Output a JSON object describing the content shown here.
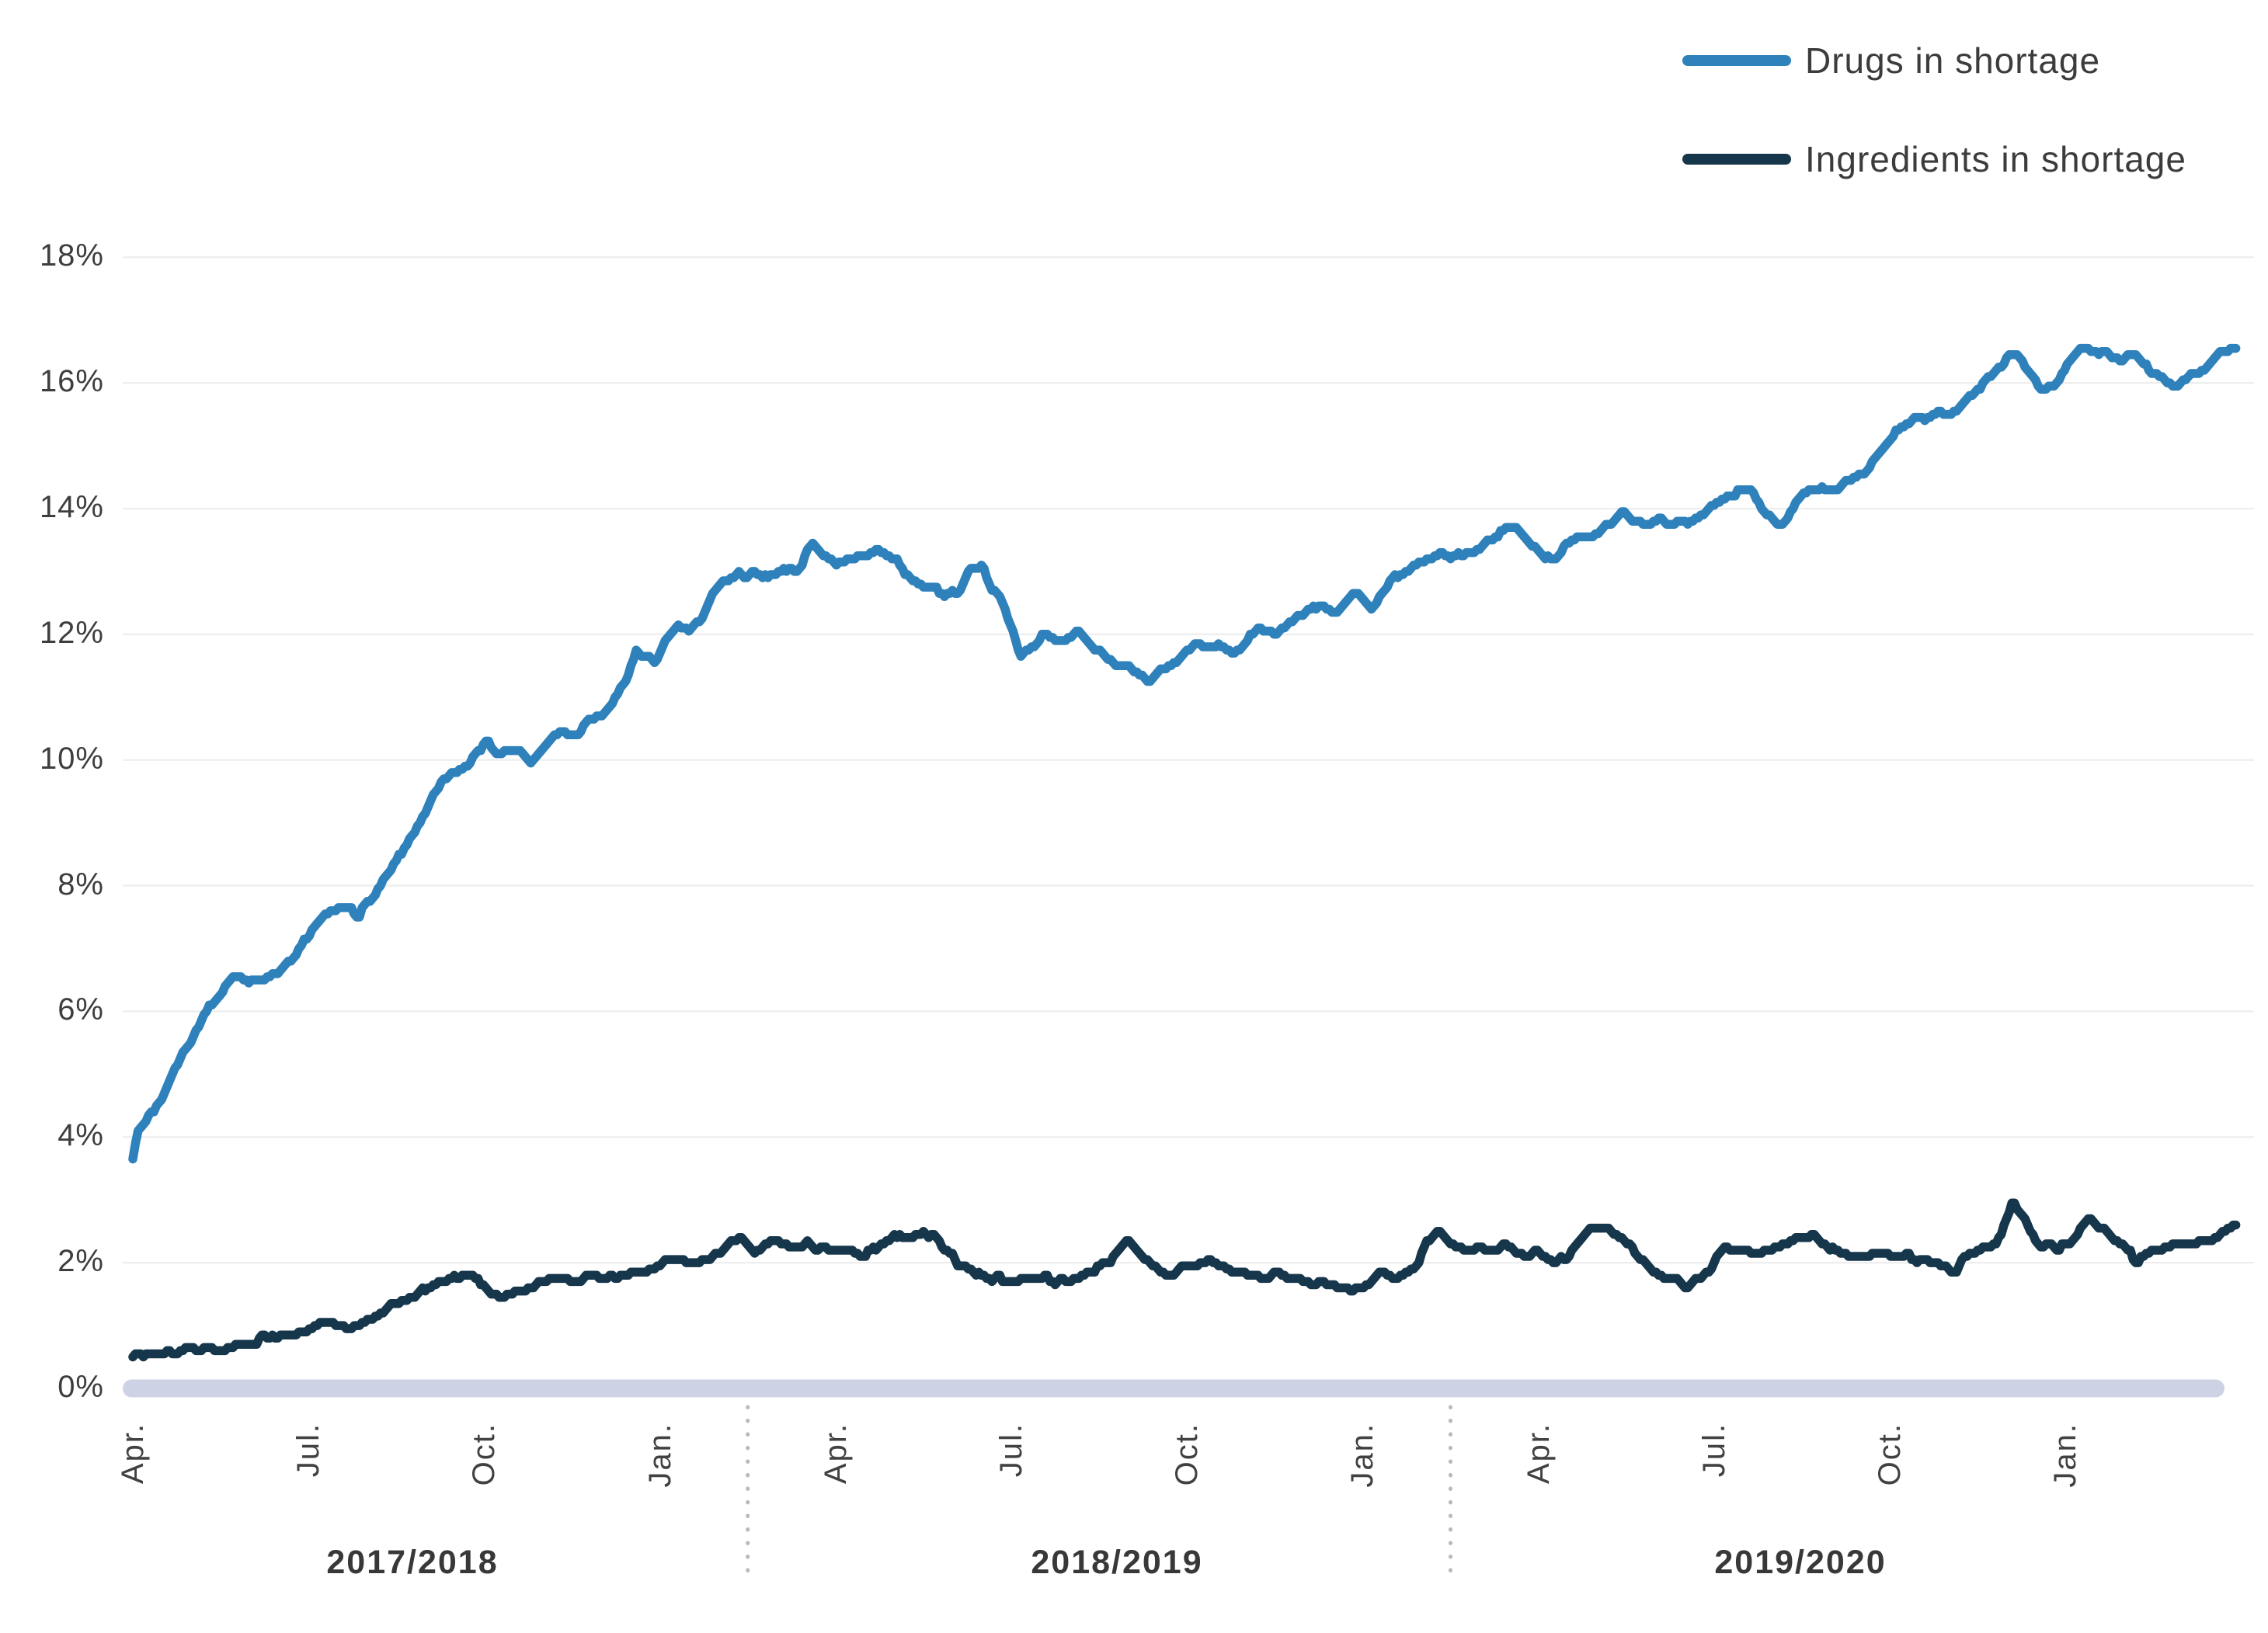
{
  "legend": {
    "items": [
      {
        "label": "Drugs in shortage",
        "color": "#2e81ba"
      },
      {
        "label": "Ingredients in shortage",
        "color": "#15364b"
      }
    ]
  },
  "chart_data": {
    "type": "line",
    "title": "",
    "xlabel": "",
    "ylabel": "",
    "x_unit": "months since April 2017",
    "x_range": [
      0,
      36
    ],
    "ylim": [
      0,
      18
    ],
    "y_ticks": [
      0,
      2,
      4,
      6,
      8,
      10,
      12,
      14,
      16,
      18
    ],
    "y_tick_suffix": "%",
    "grid": "horizontal",
    "legend_position": "top-right",
    "x_month_tick_labels": [
      "Apr.",
      "Jul.",
      "Oct.",
      "Jan."
    ],
    "x_month_tick_offsets": [
      0,
      3,
      6,
      9
    ],
    "fiscal_year_labels": [
      "2017/2018",
      "2018/2019",
      "2019/2020"
    ],
    "colors": {
      "grid": "#ececec",
      "baseline_bar": "#cdd3e5",
      "separator_dots": "#b9b9b9",
      "tick_text": "#414141"
    },
    "series": [
      {
        "name": "Drugs in shortage",
        "color": "#2e81ba",
        "points": [
          [
            0,
            3.7
          ],
          [
            0.08,
            4.15
          ],
          [
            0.2,
            4.3
          ],
          [
            0.35,
            4.35
          ],
          [
            0.5,
            4.6
          ],
          [
            0.65,
            4.95
          ],
          [
            0.8,
            5.25
          ],
          [
            1.0,
            5.55
          ],
          [
            1.2,
            5.9
          ],
          [
            1.4,
            6.2
          ],
          [
            1.6,
            6.45
          ],
          [
            1.8,
            6.55
          ],
          [
            2.0,
            6.5
          ],
          [
            2.3,
            6.55
          ],
          [
            2.6,
            6.7
          ],
          [
            2.9,
            7.05
          ],
          [
            3.1,
            7.4
          ],
          [
            3.3,
            7.6
          ],
          [
            3.6,
            7.65
          ],
          [
            3.85,
            7.55
          ],
          [
            4.1,
            7.8
          ],
          [
            4.3,
            8.1
          ],
          [
            4.5,
            8.35
          ],
          [
            4.7,
            8.65
          ],
          [
            4.9,
            8.95
          ],
          [
            5.1,
            9.45
          ],
          [
            5.3,
            9.7
          ],
          [
            5.6,
            9.9
          ],
          [
            5.9,
            10.1
          ],
          [
            6.05,
            10.35
          ],
          [
            6.2,
            10.1
          ],
          [
            6.45,
            10.1
          ],
          [
            6.6,
            10.15
          ],
          [
            6.8,
            9.95
          ],
          [
            7.0,
            10.2
          ],
          [
            7.2,
            10.45
          ],
          [
            7.45,
            10.4
          ],
          [
            7.6,
            10.45
          ],
          [
            7.8,
            10.65
          ],
          [
            8.0,
            10.75
          ],
          [
            8.2,
            10.9
          ],
          [
            8.4,
            11.2
          ],
          [
            8.6,
            11.7
          ],
          [
            8.75,
            11.6
          ],
          [
            8.9,
            11.55
          ],
          [
            9.1,
            11.9
          ],
          [
            9.3,
            12.1
          ],
          [
            9.5,
            12.0
          ],
          [
            9.7,
            12.2
          ],
          [
            9.9,
            12.6
          ],
          [
            10.1,
            12.8
          ],
          [
            10.35,
            12.95
          ],
          [
            10.6,
            13.0
          ],
          [
            10.85,
            12.9
          ],
          [
            11.1,
            13.0
          ],
          [
            11.35,
            12.95
          ],
          [
            11.6,
            13.45
          ],
          [
            11.8,
            13.25
          ],
          [
            12.0,
            13.1
          ],
          [
            12.2,
            13.2
          ],
          [
            12.45,
            13.3
          ],
          [
            12.65,
            13.35
          ],
          [
            12.9,
            13.2
          ],
          [
            13.1,
            13.15
          ],
          [
            13.3,
            12.85
          ],
          [
            13.5,
            12.75
          ],
          [
            13.7,
            12.7
          ],
          [
            13.9,
            12.6
          ],
          [
            14.1,
            12.65
          ],
          [
            14.3,
            13.0
          ],
          [
            14.5,
            13.05
          ],
          [
            14.7,
            12.7
          ],
          [
            14.85,
            12.5
          ],
          [
            15.0,
            12.1
          ],
          [
            15.15,
            11.7
          ],
          [
            15.35,
            11.8
          ],
          [
            15.55,
            12.0
          ],
          [
            15.75,
            11.85
          ],
          [
            15.95,
            11.9
          ],
          [
            16.15,
            12.0
          ],
          [
            16.35,
            11.8
          ],
          [
            16.55,
            11.65
          ],
          [
            16.75,
            11.55
          ],
          [
            16.95,
            11.5
          ],
          [
            17.15,
            11.35
          ],
          [
            17.35,
            11.25
          ],
          [
            17.55,
            11.45
          ],
          [
            17.75,
            11.5
          ],
          [
            17.95,
            11.75
          ],
          [
            18.15,
            11.85
          ],
          [
            18.35,
            11.8
          ],
          [
            18.55,
            11.9
          ],
          [
            18.75,
            11.75
          ],
          [
            18.95,
            11.85
          ],
          [
            19.15,
            12.0
          ],
          [
            19.35,
            12.1
          ],
          [
            19.55,
            12.05
          ],
          [
            19.75,
            12.2
          ],
          [
            19.95,
            12.3
          ],
          [
            20.15,
            12.45
          ],
          [
            20.35,
            12.4
          ],
          [
            20.55,
            12.3
          ],
          [
            20.75,
            12.55
          ],
          [
            20.95,
            12.65
          ],
          [
            21.15,
            12.4
          ],
          [
            21.35,
            12.7
          ],
          [
            21.55,
            12.9
          ],
          [
            21.75,
            13.05
          ],
          [
            21.95,
            13.1
          ],
          [
            22.15,
            13.15
          ],
          [
            22.35,
            13.3
          ],
          [
            22.55,
            13.2
          ],
          [
            22.75,
            13.3
          ],
          [
            22.95,
            13.35
          ],
          [
            23.2,
            13.5
          ],
          [
            23.45,
            13.65
          ],
          [
            23.65,
            13.7
          ],
          [
            23.85,
            13.45
          ],
          [
            24.05,
            13.3
          ],
          [
            24.25,
            13.15
          ],
          [
            24.45,
            13.35
          ],
          [
            24.65,
            13.5
          ],
          [
            24.85,
            13.55
          ],
          [
            25.05,
            13.6
          ],
          [
            25.25,
            13.75
          ],
          [
            25.45,
            13.95
          ],
          [
            25.65,
            13.8
          ],
          [
            25.85,
            13.75
          ],
          [
            26.05,
            13.8
          ],
          [
            26.25,
            13.75
          ],
          [
            26.45,
            13.85
          ],
          [
            26.65,
            13.8
          ],
          [
            26.85,
            13.9
          ],
          [
            27.05,
            14.1
          ],
          [
            27.25,
            14.25
          ],
          [
            27.45,
            14.3
          ],
          [
            27.65,
            14.25
          ],
          [
            27.85,
            13.9
          ],
          [
            28.05,
            13.75
          ],
          [
            28.25,
            13.8
          ],
          [
            28.45,
            14.2
          ],
          [
            28.65,
            14.3
          ],
          [
            28.85,
            14.3
          ],
          [
            29.05,
            14.25
          ],
          [
            29.25,
            14.4
          ],
          [
            29.45,
            14.5
          ],
          [
            29.65,
            14.65
          ],
          [
            29.85,
            14.9
          ],
          [
            30.05,
            15.2
          ],
          [
            30.25,
            15.3
          ],
          [
            30.45,
            15.45
          ],
          [
            30.65,
            15.4
          ],
          [
            30.85,
            15.5
          ],
          [
            31.05,
            15.55
          ],
          [
            31.25,
            15.7
          ],
          [
            31.45,
            15.85
          ],
          [
            31.65,
            16.0
          ],
          [
            31.85,
            16.2
          ],
          [
            32.05,
            16.4
          ],
          [
            32.2,
            16.45
          ],
          [
            32.4,
            16.1
          ],
          [
            32.6,
            15.85
          ],
          [
            32.8,
            15.95
          ],
          [
            33.0,
            16.2
          ],
          [
            33.2,
            16.45
          ],
          [
            33.4,
            16.6
          ],
          [
            33.6,
            16.5
          ],
          [
            33.8,
            16.45
          ],
          [
            34.0,
            16.4
          ],
          [
            34.2,
            16.45
          ],
          [
            34.4,
            16.25
          ],
          [
            34.6,
            16.1
          ],
          [
            34.8,
            15.95
          ],
          [
            35.0,
            16.05
          ],
          [
            35.2,
            16.1
          ],
          [
            35.4,
            16.3
          ],
          [
            35.6,
            16.45
          ],
          [
            35.8,
            16.5
          ],
          [
            35.95,
            16.55
          ]
        ]
      },
      {
        "name": "Ingredients in shortage",
        "color": "#15364b",
        "points": [
          [
            0,
            0.5
          ],
          [
            0.3,
            0.55
          ],
          [
            0.6,
            0.6
          ],
          [
            0.9,
            0.6
          ],
          [
            1.2,
            0.6
          ],
          [
            1.5,
            0.65
          ],
          [
            1.8,
            0.7
          ],
          [
            2.1,
            0.75
          ],
          [
            2.4,
            0.85
          ],
          [
            2.7,
            0.9
          ],
          [
            3.0,
            0.95
          ],
          [
            3.3,
            1.0
          ],
          [
            3.6,
            0.95
          ],
          [
            3.9,
            1.05
          ],
          [
            4.2,
            1.2
          ],
          [
            4.5,
            1.4
          ],
          [
            4.8,
            1.5
          ],
          [
            5.1,
            1.6
          ],
          [
            5.4,
            1.7
          ],
          [
            5.7,
            1.8
          ],
          [
            6.0,
            1.65
          ],
          [
            6.3,
            1.45
          ],
          [
            6.6,
            1.55
          ],
          [
            6.9,
            1.7
          ],
          [
            7.2,
            1.75
          ],
          [
            7.5,
            1.65
          ],
          [
            7.8,
            1.8
          ],
          [
            8.1,
            1.75
          ],
          [
            8.4,
            1.85
          ],
          [
            8.7,
            1.8
          ],
          [
            9.0,
            1.95
          ],
          [
            9.3,
            2.05
          ],
          [
            9.6,
            1.95
          ],
          [
            9.9,
            2.05
          ],
          [
            10.2,
            2.35
          ],
          [
            10.4,
            2.45
          ],
          [
            10.6,
            2.2
          ],
          [
            10.9,
            2.3
          ],
          [
            11.2,
            2.25
          ],
          [
            11.5,
            2.3
          ],
          [
            11.8,
            2.2
          ],
          [
            12.1,
            2.25
          ],
          [
            12.4,
            2.1
          ],
          [
            12.7,
            2.2
          ],
          [
            13.0,
            2.5
          ],
          [
            13.2,
            2.35
          ],
          [
            13.5,
            2.5
          ],
          [
            13.8,
            2.3
          ],
          [
            14.1,
            2.0
          ],
          [
            14.4,
            1.85
          ],
          [
            14.7,
            1.75
          ],
          [
            15.0,
            1.7
          ],
          [
            15.3,
            1.8
          ],
          [
            15.6,
            1.75
          ],
          [
            15.9,
            1.7
          ],
          [
            16.2,
            1.8
          ],
          [
            16.5,
            1.95
          ],
          [
            16.8,
            2.1
          ],
          [
            17.0,
            2.35
          ],
          [
            17.2,
            2.15
          ],
          [
            17.5,
            1.9
          ],
          [
            17.8,
            1.85
          ],
          [
            18.1,
            2.0
          ],
          [
            18.4,
            2.05
          ],
          [
            18.7,
            1.85
          ],
          [
            19.0,
            1.8
          ],
          [
            19.3,
            1.75
          ],
          [
            19.6,
            1.85
          ],
          [
            19.9,
            1.75
          ],
          [
            20.2,
            1.65
          ],
          [
            20.5,
            1.7
          ],
          [
            20.8,
            1.55
          ],
          [
            21.0,
            1.65
          ],
          [
            21.3,
            1.8
          ],
          [
            21.6,
            1.7
          ],
          [
            21.9,
            1.95
          ],
          [
            22.1,
            2.3
          ],
          [
            22.3,
            2.5
          ],
          [
            22.5,
            2.3
          ],
          [
            22.8,
            2.15
          ],
          [
            23.1,
            2.2
          ],
          [
            23.4,
            2.25
          ],
          [
            23.7,
            2.1
          ],
          [
            24.0,
            2.2
          ],
          [
            24.3,
            2.0
          ],
          [
            24.6,
            2.2
          ],
          [
            24.9,
            2.5
          ],
          [
            25.1,
            2.55
          ],
          [
            25.4,
            2.4
          ],
          [
            25.7,
            2.1
          ],
          [
            26.0,
            1.8
          ],
          [
            26.3,
            1.7
          ],
          [
            26.6,
            1.6
          ],
          [
            26.9,
            1.9
          ],
          [
            27.2,
            2.2
          ],
          [
            27.5,
            2.25
          ],
          [
            27.8,
            2.15
          ],
          [
            28.1,
            2.2
          ],
          [
            28.4,
            2.35
          ],
          [
            28.7,
            2.4
          ],
          [
            29.0,
            2.2
          ],
          [
            29.3,
            2.1
          ],
          [
            29.6,
            2.15
          ],
          [
            29.9,
            2.2
          ],
          [
            30.2,
            2.1
          ],
          [
            30.5,
            2.05
          ],
          [
            30.8,
            1.95
          ],
          [
            31.1,
            1.85
          ],
          [
            31.4,
            2.2
          ],
          [
            31.7,
            2.25
          ],
          [
            31.9,
            2.4
          ],
          [
            32.1,
            3.0
          ],
          [
            32.3,
            2.7
          ],
          [
            32.5,
            2.35
          ],
          [
            32.8,
            2.25
          ],
          [
            33.1,
            2.3
          ],
          [
            33.4,
            2.75
          ],
          [
            33.6,
            2.55
          ],
          [
            33.9,
            2.3
          ],
          [
            34.2,
            2.05
          ],
          [
            34.5,
            2.15
          ],
          [
            34.8,
            2.25
          ],
          [
            35.1,
            2.3
          ],
          [
            35.4,
            2.35
          ],
          [
            35.7,
            2.45
          ],
          [
            35.95,
            2.6
          ]
        ]
      }
    ]
  }
}
